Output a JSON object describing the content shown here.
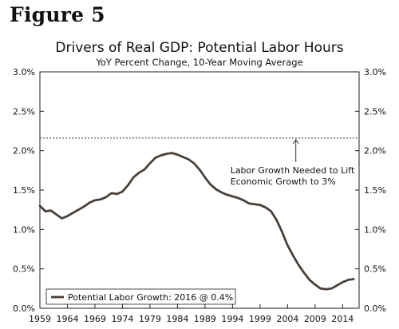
{
  "figure_label": "Figure 5",
  "chart_data": {
    "type": "line",
    "title": "Drivers of Real GDP: Potential Labor Hours",
    "subtitle": "YoY Percent Change, 10-Year Moving Average",
    "xlabel": "",
    "ylabel": "",
    "xlim": [
      1959,
      2017
    ],
    "ylim": [
      0.0,
      3.0
    ],
    "y_ticks": [
      "0.0%",
      "0.5%",
      "1.0%",
      "1.5%",
      "2.0%",
      "2.5%",
      "3.0%"
    ],
    "y_tick_values": [
      0.0,
      0.5,
      1.0,
      1.5,
      2.0,
      2.5,
      3.0
    ],
    "x_ticks": [
      "1959",
      "1964",
      "1969",
      "1974",
      "1979",
      "1984",
      "1989",
      "1994",
      "1999",
      "2004",
      "2009",
      "2014"
    ],
    "x_tick_values": [
      1959,
      1964,
      1969,
      1974,
      1979,
      1984,
      1989,
      1994,
      1999,
      2004,
      2009,
      2014
    ],
    "grid": false,
    "legend_position": "bottom-left",
    "reference_line": {
      "value": 2.16,
      "style": "dotted",
      "label_lines": [
        "Labor Growth Needed to Lift",
        "Economic Growth to 3%"
      ],
      "arrow_year": 2005.5
    },
    "series": [
      {
        "name": "Potential Labor Growth: 2016 @ 0.4%",
        "color": "#4a403a",
        "x": [
          1959,
          1960,
          1961,
          1962,
          1963,
          1964,
          1965,
          1966,
          1967,
          1968,
          1969,
          1970,
          1971,
          1972,
          1973,
          1974,
          1975,
          1976,
          1977,
          1978,
          1979,
          1980,
          1981,
          1982,
          1983,
          1984,
          1985,
          1986,
          1987,
          1988,
          1989,
          1990,
          1991,
          1992,
          1993,
          1994,
          1995,
          1996,
          1997,
          1998,
          1999,
          2000,
          2001,
          2002,
          2003,
          2004,
          2005,
          2006,
          2007,
          2008,
          2009,
          2010,
          2011,
          2012,
          2013,
          2014,
          2015,
          2016
        ],
        "y": [
          1.3,
          1.23,
          1.24,
          1.19,
          1.14,
          1.17,
          1.21,
          1.25,
          1.29,
          1.34,
          1.37,
          1.38,
          1.41,
          1.46,
          1.45,
          1.48,
          1.56,
          1.66,
          1.72,
          1.76,
          1.84,
          1.91,
          1.94,
          1.96,
          1.97,
          1.95,
          1.92,
          1.89,
          1.84,
          1.76,
          1.66,
          1.57,
          1.51,
          1.47,
          1.44,
          1.42,
          1.4,
          1.37,
          1.33,
          1.32,
          1.31,
          1.28,
          1.23,
          1.12,
          0.97,
          0.8,
          0.67,
          0.55,
          0.45,
          0.36,
          0.3,
          0.25,
          0.24,
          0.25,
          0.29,
          0.33,
          0.36,
          0.37
        ]
      }
    ]
  }
}
